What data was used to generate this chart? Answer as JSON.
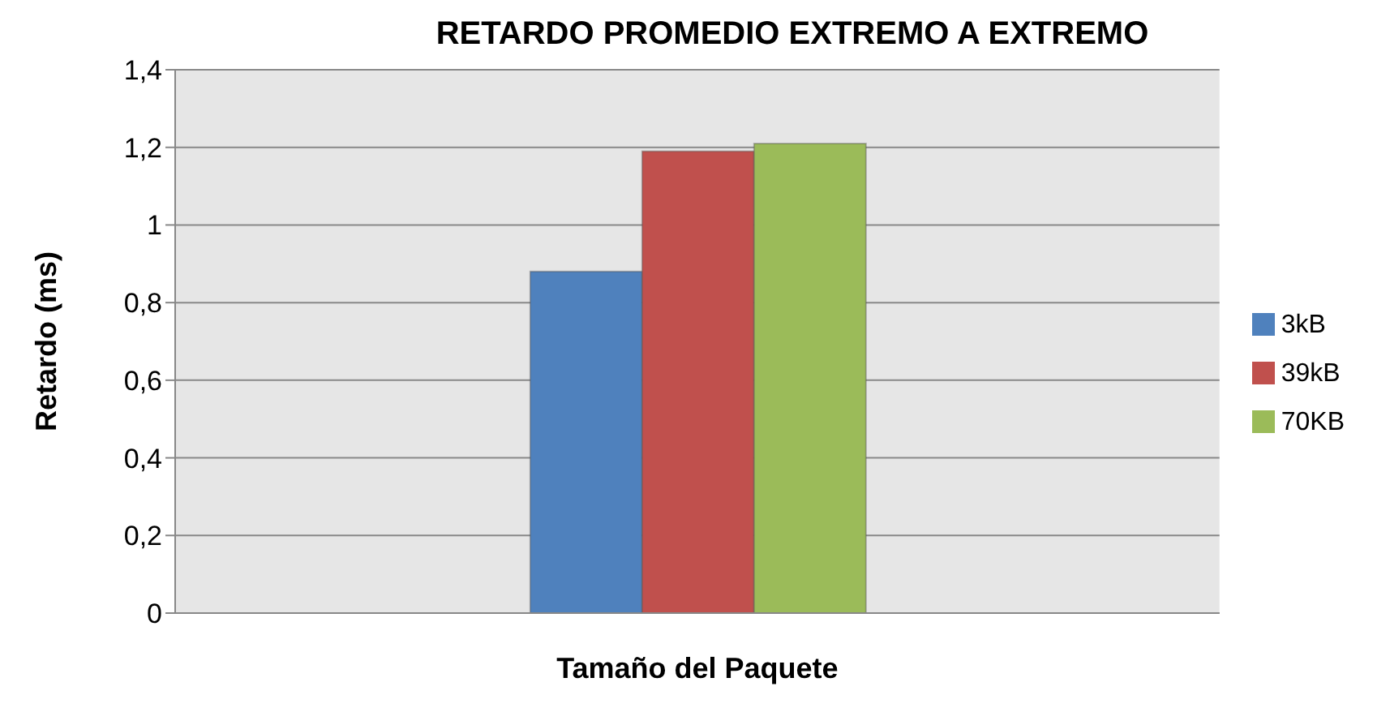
{
  "chart_data": {
    "type": "bar",
    "title": "RETARDO PROMEDIO EXTREMO A EXTREMO",
    "xlabel": "Tamaño del Paquete",
    "ylabel": "Retardo (ms)",
    "categories": [
      null
    ],
    "series": [
      {
        "name": "3kB",
        "color": "#4f81bd",
        "values": [
          0.88
        ]
      },
      {
        "name": "39kB",
        "color": "#c0504d",
        "values": [
          1.19
        ]
      },
      {
        "name": "70KB",
        "color": "#9bbb59",
        "values": [
          1.21
        ]
      }
    ],
    "ylim": [
      0,
      1.4
    ],
    "yticks": [
      0,
      {
        "value": 0.2,
        "label": "0,2"
      },
      {
        "value": 0.4,
        "label": "0,4"
      },
      {
        "value": 0.6,
        "label": "0,6"
      },
      {
        "value": 0.8,
        "label": "0,8"
      },
      1,
      {
        "value": 1.2,
        "label": "1,2"
      },
      {
        "value": 1.4,
        "label": "1,4"
      }
    ],
    "grid": "y",
    "legend": "right"
  }
}
